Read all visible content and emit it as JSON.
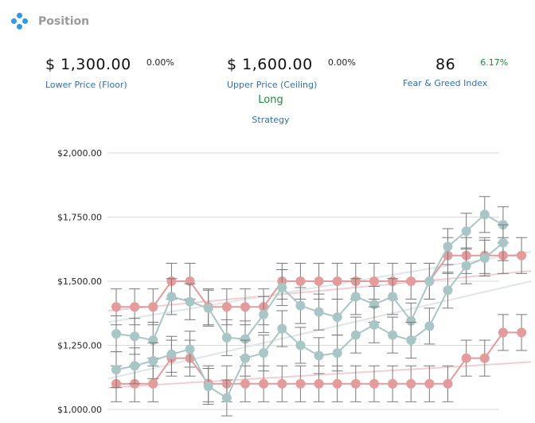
{
  "header": {
    "title": "Position",
    "icon": "diamond-dots-icon"
  },
  "stats": {
    "lower": {
      "value": "$ 1,300.00",
      "change": "0.00%",
      "label": "Lower Price (Floor)"
    },
    "upper": {
      "value": "$ 1,600.00",
      "change": "0.00%",
      "label": "Upper Price (Ceiling)"
    },
    "fear": {
      "value": "86",
      "change": "6.17%",
      "label": "Fear & Greed Index"
    }
  },
  "strategy": {
    "value": "Long",
    "label": "Strategy"
  },
  "colors": {
    "pink": "#e49b9b",
    "teal": "#a9c6c6",
    "grid": "#d9d9d9",
    "label": "#2f6fb3",
    "green": "#1f8a3c"
  },
  "chart_data": {
    "type": "line",
    "ylim": [
      1000,
      2000
    ],
    "yticks": [
      {
        "value": 1000,
        "label": "$1,000.00"
      },
      {
        "value": 1250,
        "label": "$1,250.00"
      },
      {
        "value": 1500,
        "label": "$1,500.00"
      },
      {
        "value": 1750,
        "label": "$1,750.00"
      },
      {
        "value": 2000,
        "label": "$2,000.00"
      }
    ],
    "x": [
      1,
      2,
      3,
      4,
      5,
      6,
      7,
      8,
      9,
      10,
      11,
      12,
      13,
      14,
      15,
      16,
      17,
      18,
      19,
      20,
      21,
      22,
      23
    ],
    "error_bar": 70,
    "series": [
      {
        "key": "pink_upper",
        "color": "pink",
        "values": [
          1400,
          1400,
          1400,
          1500,
          1500,
          1400,
          1400,
          1400,
          1400,
          1500,
          1500,
          1500,
          1500,
          1500,
          1500,
          1500,
          1500,
          1500,
          1600,
          1600,
          1600,
          1600,
          1600
        ]
      },
      {
        "key": "pink_lower",
        "color": "pink",
        "values": [
          1100,
          1100,
          1100,
          1200,
          1200,
          1100,
          1100,
          1100,
          1100,
          1100,
          1100,
          1100,
          1100,
          1100,
          1100,
          1100,
          1100,
          1100,
          1100,
          1200,
          1200,
          1300,
          1300
        ]
      },
      {
        "key": "teal_upper",
        "color": "teal",
        "values": [
          1295,
          1285,
          1270,
          1440,
          1420,
          1395,
          1280,
          1275,
          1370,
          1475,
          1405,
          1380,
          1360,
          1440,
          1410,
          1440,
          1345,
          1500,
          1635,
          1695,
          1760,
          1720,
          null
        ]
      },
      {
        "key": "teal_lower",
        "color": "teal",
        "values": [
          1155,
          1170,
          1190,
          1215,
          1235,
          1090,
          1045,
          1200,
          1220,
          1315,
          1250,
          1210,
          1220,
          1290,
          1330,
          1290,
          1270,
          1325,
          1465,
          1560,
          1590,
          1650,
          null
        ]
      }
    ],
    "trend_lines": [
      {
        "color": "pink",
        "from": [
          1,
          1385
        ],
        "to": [
          23,
          1540
        ]
      },
      {
        "color": "pink",
        "from": [
          1,
          1085
        ],
        "to": [
          23,
          1185
        ]
      },
      {
        "color": "teal",
        "from": [
          1,
          1340
        ],
        "to": [
          23,
          1615
        ]
      },
      {
        "color": "teal",
        "from": [
          1,
          1120
        ],
        "to": [
          23,
          1500
        ]
      }
    ]
  }
}
